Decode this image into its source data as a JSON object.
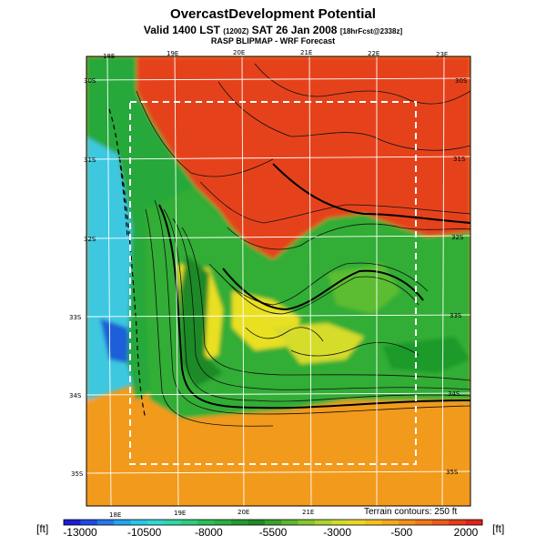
{
  "header": {
    "title": "OvercastDevelopment Potential",
    "valid_prefix": "Valid 1400 LST",
    "valid_small": "(1200Z)",
    "valid_date": "SAT 26 Jan 2008",
    "valid_suffix": "[18hrFcst@2338z]",
    "model": "RASP BLIPMAP - WRF Forecast"
  },
  "map": {
    "lon_labels_top": [
      "18E",
      "19E",
      "20E",
      "21E",
      "22E",
      "23E"
    ],
    "lon_labels_bottom": [
      "18E",
      "19E",
      "20E",
      "21E"
    ],
    "lat_labels_left": [
      "30S",
      "31S",
      "32S",
      "33S",
      "34S",
      "35S"
    ],
    "lat_labels_right": [
      "30S",
      "31S",
      "32S",
      "33S",
      "34S",
      "35S"
    ],
    "terrain_note": "Terrain contours: 250 ft",
    "colors": {
      "ocean_deep": "#1f5fd8",
      "ocean": "#3ec8e0",
      "green_dark": "#1f9a2a",
      "green": "#4cc23a",
      "yellow": "#e9e020",
      "orange": "#f29a1b",
      "red": "#e5421d"
    }
  },
  "colorbar": {
    "unit_left": "[ft]",
    "unit_right": "[ft]",
    "labels": [
      "-13000",
      "-10500",
      "-8000",
      "-5500",
      "-3000",
      "-500",
      "2000"
    ],
    "colors": [
      "#1d1ad6",
      "#1f48e6",
      "#2378ec",
      "#24a4ee",
      "#28c8e8",
      "#2fd8d0",
      "#2fd6a8",
      "#2ecd80",
      "#2cbf58",
      "#28b040",
      "#229c30",
      "#1e8a26",
      "#3aa02a",
      "#5cb82c",
      "#84c830",
      "#acd430",
      "#d0dc2a",
      "#ecd622",
      "#f4c01e",
      "#f6a81c",
      "#f6901a",
      "#f47618",
      "#f05a18",
      "#e83c18",
      "#e02218"
    ]
  }
}
